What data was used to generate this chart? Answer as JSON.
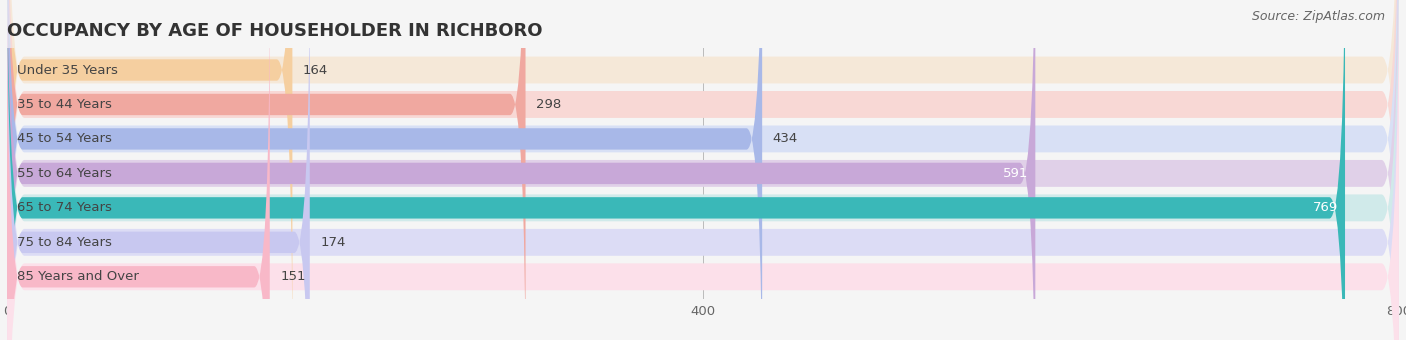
{
  "title": "OCCUPANCY BY AGE OF HOUSEHOLDER IN RICHBORO",
  "source": "Source: ZipAtlas.com",
  "categories": [
    "Under 35 Years",
    "35 to 44 Years",
    "45 to 54 Years",
    "55 to 64 Years",
    "65 to 74 Years",
    "75 to 84 Years",
    "85 Years and Over"
  ],
  "values": [
    164,
    298,
    434,
    591,
    769,
    174,
    151
  ],
  "bar_colors": [
    "#f5cfa0",
    "#f0a8a0",
    "#a8b8e8",
    "#c8a8d8",
    "#3ab8b8",
    "#c8c8f0",
    "#f8b8c8"
  ],
  "bar_bg_colors": [
    "#f5e8d8",
    "#f8d8d5",
    "#d8e0f5",
    "#e0d0e8",
    "#d0eaea",
    "#dcdcf5",
    "#fce0ea"
  ],
  "xlim": [
    0,
    800
  ],
  "xticks": [
    0,
    400,
    800
  ],
  "background_color": "#f5f5f5",
  "title_fontsize": 13,
  "label_fontsize": 9.5,
  "value_fontsize": 9.5,
  "source_fontsize": 9,
  "inside_label_vals": [
    591,
    769
  ]
}
